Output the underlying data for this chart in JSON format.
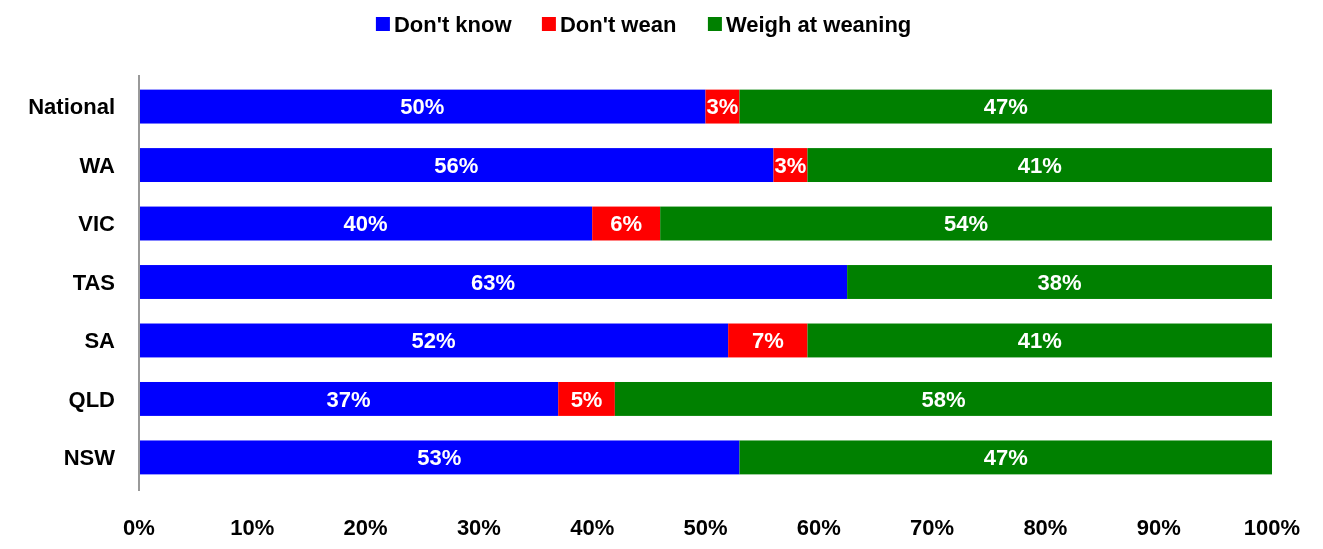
{
  "chart_data": {
    "type": "bar",
    "orientation": "horizontal",
    "stacked": true,
    "categories": [
      "National",
      "WA",
      "VIC",
      "TAS",
      "SA",
      "QLD",
      "NSW"
    ],
    "series": [
      {
        "name": "Don't know",
        "color": "#0000ff",
        "values": [
          50,
          56,
          40,
          62.5,
          52,
          37,
          53
        ],
        "value_labels": [
          "50%",
          "56%",
          "40%",
          "63%",
          "52%",
          "37%",
          "53%"
        ]
      },
      {
        "name": "Don't wean",
        "color": "#ff0000",
        "values": [
          3,
          3,
          6,
          null,
          7,
          5,
          null
        ],
        "value_labels": [
          "3%",
          "3%",
          "6%",
          null,
          "7%",
          "5%",
          null
        ]
      },
      {
        "name": "Weigh at weaning",
        "color": "#008000",
        "values": [
          47,
          41,
          54,
          37.5,
          41,
          58,
          47
        ],
        "value_labels": [
          "47%",
          "41%",
          "54%",
          "38%",
          "41%",
          "58%",
          "47%"
        ]
      }
    ],
    "xlim": [
      0,
      100
    ],
    "xticks": [
      {
        "value": 0,
        "label": "0%"
      },
      {
        "value": 10,
        "label": "10%"
      },
      {
        "value": 20,
        "label": "20%"
      },
      {
        "value": 30,
        "label": "30%"
      },
      {
        "value": 40,
        "label": "40%"
      },
      {
        "value": 50,
        "label": "50%"
      },
      {
        "value": 60,
        "label": "60%"
      },
      {
        "value": 70,
        "label": "70%"
      },
      {
        "value": 80,
        "label": "80%"
      },
      {
        "value": 90,
        "label": "90%"
      },
      {
        "value": 100,
        "label": "100%"
      }
    ],
    "grid": false,
    "legend": "top"
  }
}
